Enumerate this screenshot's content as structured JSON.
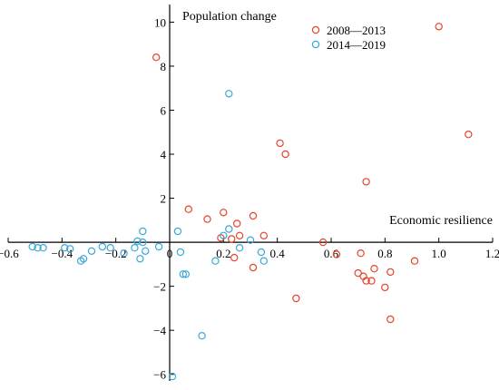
{
  "chart_data": {
    "type": "scatter",
    "title": "",
    "xlabel": "Economic resilience",
    "ylabel": "Population change",
    "xlim": [
      -0.6,
      1.2
    ],
    "ylim": [
      -6.3,
      10.8
    ],
    "xticks": [
      -0.6,
      -0.4,
      -0.2,
      0,
      0.2,
      0.4,
      0.6,
      0.8,
      1.0,
      1.2
    ],
    "xtick_labels": [
      "−0.6",
      "−0.4",
      "−0.2",
      "0",
      "0.2",
      "0.4",
      "0.6",
      "0.8",
      "1.0",
      "1.2"
    ],
    "yticks": [
      -6,
      -4,
      -2,
      0,
      2,
      4,
      6,
      8,
      10
    ],
    "ytick_labels": [
      "−6",
      "−4",
      "−2",
      "0",
      "2",
      "4",
      "6",
      "8",
      "10"
    ],
    "grid": false,
    "legend_position": "top-right",
    "series": [
      {
        "name": "2008—2013",
        "color": "#e8432a",
        "marker": "open-circle",
        "points": [
          [
            -0.05,
            8.4
          ],
          [
            0.07,
            1.5
          ],
          [
            0.14,
            1.05
          ],
          [
            0.2,
            1.35
          ],
          [
            0.19,
            0.2
          ],
          [
            0.23,
            0.15
          ],
          [
            0.25,
            0.85
          ],
          [
            0.26,
            0.3
          ],
          [
            0.24,
            -0.7
          ],
          [
            0.31,
            1.2
          ],
          [
            0.35,
            0.3
          ],
          [
            0.31,
            -1.15
          ],
          [
            0.41,
            4.5
          ],
          [
            0.43,
            4.0
          ],
          [
            0.47,
            -2.55
          ],
          [
            0.57,
            0.0
          ],
          [
            0.62,
            -0.55
          ],
          [
            0.73,
            2.75
          ],
          [
            0.71,
            -0.5
          ],
          [
            0.7,
            -1.4
          ],
          [
            0.72,
            -1.55
          ],
          [
            0.73,
            -1.75
          ],
          [
            0.75,
            -1.75
          ],
          [
            0.76,
            -1.2
          ],
          [
            0.8,
            -2.05
          ],
          [
            0.82,
            -1.35
          ],
          [
            0.82,
            -3.5
          ],
          [
            0.91,
            -0.85
          ],
          [
            1.0,
            9.8
          ],
          [
            1.11,
            4.9
          ]
        ]
      },
      {
        "name": "2014—2019",
        "color": "#3aa8d8",
        "marker": "open-circle",
        "points": [
          [
            -0.51,
            -0.2
          ],
          [
            -0.49,
            -0.25
          ],
          [
            -0.47,
            -0.25
          ],
          [
            -0.39,
            -0.25
          ],
          [
            -0.37,
            -0.3
          ],
          [
            -0.33,
            -0.85
          ],
          [
            -0.32,
            -0.75
          ],
          [
            -0.29,
            -0.4
          ],
          [
            -0.25,
            -0.2
          ],
          [
            -0.22,
            -0.25
          ],
          [
            -0.17,
            -0.5
          ],
          [
            -0.13,
            -0.25
          ],
          [
            -0.12,
            0.05
          ],
          [
            -0.1,
            0.5
          ],
          [
            -0.09,
            -0.4
          ],
          [
            -0.11,
            -0.75
          ],
          [
            -0.1,
            0.0
          ],
          [
            0.03,
            0.5
          ],
          [
            0.04,
            -0.45
          ],
          [
            0.05,
            -1.45
          ],
          [
            0.06,
            -1.45
          ],
          [
            0.12,
            -4.25
          ],
          [
            -0.04,
            -0.2
          ],
          [
            0.17,
            -0.85
          ],
          [
            0.2,
            0.3
          ],
          [
            0.22,
            0.6
          ],
          [
            0.22,
            6.75
          ],
          [
            0.26,
            -0.25
          ],
          [
            0.3,
            0.1
          ],
          [
            0.34,
            -0.45
          ],
          [
            0.35,
            -0.85
          ],
          [
            0.01,
            -6.1
          ]
        ]
      }
    ]
  }
}
